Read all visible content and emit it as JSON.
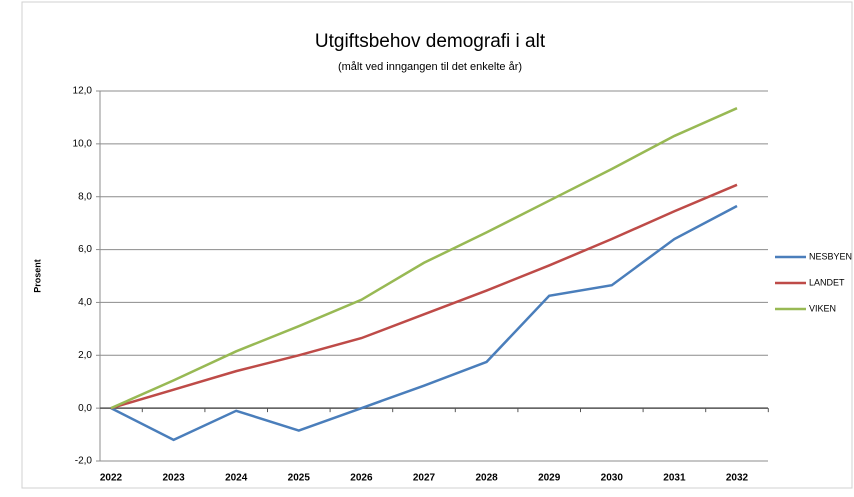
{
  "chart_data": {
    "type": "line",
    "title": "Utgiftsbehov demografi i alt",
    "subtitle": "(målt ved inngangen til det enkelte år)",
    "y_label": "Prosent",
    "categories": [
      "2022",
      "2023",
      "2024",
      "2025",
      "2026",
      "2027",
      "2028",
      "2029",
      "2030",
      "2031",
      "2032"
    ],
    "series": [
      {
        "name": "NESBYEN",
        "color": "#4a7ebb",
        "values": [
          0,
          -1.2,
          -0.1,
          -0.85,
          0,
          0.85,
          1.75,
          4.25,
          4.65,
          6.4,
          7.65
        ]
      },
      {
        "name": "LANDET",
        "color": "#be4b48",
        "values": [
          0,
          0.7,
          1.4,
          2.0,
          2.65,
          3.55,
          4.45,
          5.4,
          6.4,
          7.45,
          8.45
        ]
      },
      {
        "name": "VIKEN",
        "color": "#98b954",
        "values": [
          0,
          1.05,
          2.15,
          3.1,
          4.1,
          5.5,
          6.65,
          7.85,
          9.05,
          10.3,
          11.35
        ]
      }
    ],
    "ylim": [
      -2,
      12
    ],
    "yticks": [
      {
        "value": -2,
        "label": "-2,0"
      },
      {
        "value": 0,
        "label": "0,0"
      },
      {
        "value": 2,
        "label": "2,0"
      },
      {
        "value": 4,
        "label": "4,0"
      },
      {
        "value": 6,
        "label": "6,0"
      },
      {
        "value": 8,
        "label": "8,0"
      },
      {
        "value": 10,
        "label": "10,0"
      },
      {
        "value": 12,
        "label": "12,0"
      }
    ],
    "grid": true,
    "legend": "right"
  }
}
